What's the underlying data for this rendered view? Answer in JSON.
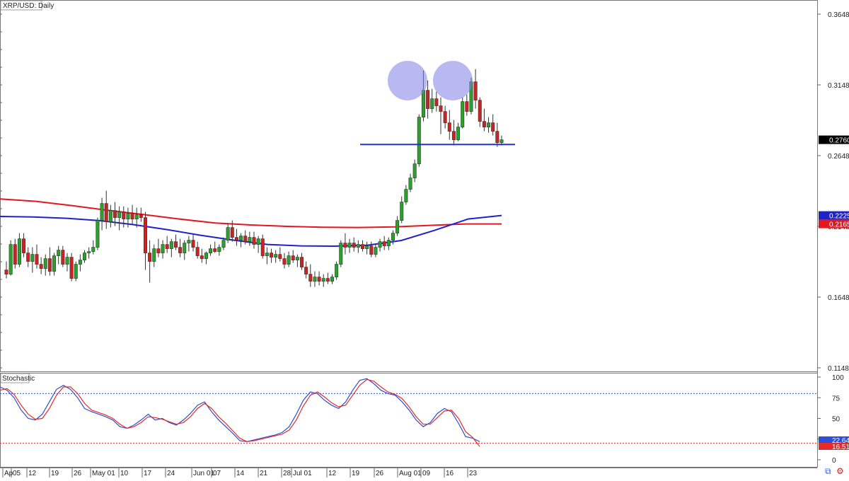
{
  "title": "XRP/USD: Daily",
  "colors": {
    "up": "#2ca02c",
    "down": "#cc2222",
    "ma_red": "#e4161f",
    "ma_blue": "#1f22c8",
    "support": "#2332d6",
    "circle": "#7f7fe8",
    "stoch_blue": "#2a4fd8",
    "stoch_red": "#e42a2a"
  },
  "chart_data": [
    {
      "type": "candlestick",
      "title": "XRP/USD: Daily",
      "y_ticks": [
        "0.3648",
        "0.3148",
        "0.2648",
        "0.2148",
        "0.1648",
        "0.1148"
      ],
      "ylim": [
        0.1148,
        0.3648
      ],
      "x_ticks": [
        "Ap",
        "05",
        "12",
        "19",
        "26",
        "May 01",
        "10",
        "17",
        "24",
        "Jun 01",
        "07",
        "14",
        "21",
        "28",
        "Jul 01",
        "12",
        "19",
        "26",
        "Aug 01",
        "09",
        "16",
        "23"
      ],
      "price_labels": [
        {
          "value": "0.2760",
          "bg": "#000000"
        },
        {
          "value": "0.2225",
          "bg": "#1f22c8"
        },
        {
          "value": "0.2165",
          "bg": "#e4161f"
        }
      ],
      "support_level": 0.2727,
      "highlights": [
        "double-top-left",
        "double-top-right"
      ],
      "ma_blue": [
        0.2218,
        0.2214,
        0.2205,
        0.2188,
        0.216,
        0.2125,
        0.2085,
        0.205,
        0.202,
        0.201,
        0.2008,
        0.2015,
        0.2048,
        0.212,
        0.22,
        0.2225
      ],
      "ma_red": [
        0.2342,
        0.2325,
        0.2295,
        0.2262,
        0.2232,
        0.22,
        0.2172,
        0.2158,
        0.2148,
        0.2142,
        0.214,
        0.2144,
        0.2155,
        0.2165,
        0.2165
      ],
      "candles": [
        {
          "o": 0.184,
          "h": 0.19,
          "l": 0.178,
          "c": 0.181
        },
        {
          "o": 0.181,
          "h": 0.205,
          "l": 0.18,
          "c": 0.202
        },
        {
          "o": 0.202,
          "h": 0.206,
          "l": 0.185,
          "c": 0.188
        },
        {
          "o": 0.188,
          "h": 0.21,
          "l": 0.186,
          "c": 0.206
        },
        {
          "o": 0.206,
          "h": 0.21,
          "l": 0.193,
          "c": 0.196
        },
        {
          "o": 0.196,
          "h": 0.2,
          "l": 0.186,
          "c": 0.19
        },
        {
          "o": 0.19,
          "h": 0.2,
          "l": 0.182,
          "c": 0.195
        },
        {
          "o": 0.195,
          "h": 0.202,
          "l": 0.185,
          "c": 0.188
        },
        {
          "o": 0.188,
          "h": 0.193,
          "l": 0.181,
          "c": 0.185
        },
        {
          "o": 0.185,
          "h": 0.195,
          "l": 0.18,
          "c": 0.192
        },
        {
          "o": 0.192,
          "h": 0.2,
          "l": 0.18,
          "c": 0.183
        },
        {
          "o": 0.183,
          "h": 0.196,
          "l": 0.18,
          "c": 0.194
        },
        {
          "o": 0.194,
          "h": 0.201,
          "l": 0.188,
          "c": 0.198
        },
        {
          "o": 0.198,
          "h": 0.201,
          "l": 0.186,
          "c": 0.188
        },
        {
          "o": 0.188,
          "h": 0.196,
          "l": 0.183,
          "c": 0.193
        },
        {
          "o": 0.193,
          "h": 0.196,
          "l": 0.176,
          "c": 0.178
        },
        {
          "o": 0.178,
          "h": 0.19,
          "l": 0.176,
          "c": 0.188
        },
        {
          "o": 0.188,
          "h": 0.195,
          "l": 0.183,
          "c": 0.191
        },
        {
          "o": 0.191,
          "h": 0.198,
          "l": 0.189,
          "c": 0.196
        },
        {
          "o": 0.196,
          "h": 0.2,
          "l": 0.192,
          "c": 0.197
        },
        {
          "o": 0.197,
          "h": 0.205,
          "l": 0.195,
          "c": 0.2
        },
        {
          "o": 0.2,
          "h": 0.221,
          "l": 0.198,
          "c": 0.219
        },
        {
          "o": 0.219,
          "h": 0.235,
          "l": 0.212,
          "c": 0.231
        },
        {
          "o": 0.231,
          "h": 0.24,
          "l": 0.213,
          "c": 0.218
        },
        {
          "o": 0.218,
          "h": 0.23,
          "l": 0.214,
          "c": 0.226
        },
        {
          "o": 0.226,
          "h": 0.232,
          "l": 0.215,
          "c": 0.221
        },
        {
          "o": 0.221,
          "h": 0.229,
          "l": 0.212,
          "c": 0.225
        },
        {
          "o": 0.225,
          "h": 0.229,
          "l": 0.214,
          "c": 0.22
        },
        {
          "o": 0.22,
          "h": 0.228,
          "l": 0.214,
          "c": 0.224
        },
        {
          "o": 0.224,
          "h": 0.23,
          "l": 0.216,
          "c": 0.22
        },
        {
          "o": 0.22,
          "h": 0.228,
          "l": 0.214,
          "c": 0.223
        },
        {
          "o": 0.223,
          "h": 0.228,
          "l": 0.218,
          "c": 0.221
        },
        {
          "o": 0.221,
          "h": 0.225,
          "l": 0.184,
          "c": 0.196
        },
        {
          "o": 0.196,
          "h": 0.205,
          "l": 0.175,
          "c": 0.19
        },
        {
          "o": 0.19,
          "h": 0.202,
          "l": 0.186,
          "c": 0.199
        },
        {
          "o": 0.199,
          "h": 0.206,
          "l": 0.193,
          "c": 0.196
        },
        {
          "o": 0.196,
          "h": 0.205,
          "l": 0.192,
          "c": 0.202
        },
        {
          "o": 0.202,
          "h": 0.208,
          "l": 0.196,
          "c": 0.199
        },
        {
          "o": 0.199,
          "h": 0.206,
          "l": 0.193,
          "c": 0.204
        },
        {
          "o": 0.204,
          "h": 0.209,
          "l": 0.198,
          "c": 0.2
        },
        {
          "o": 0.2,
          "h": 0.206,
          "l": 0.193,
          "c": 0.196
        },
        {
          "o": 0.196,
          "h": 0.205,
          "l": 0.191,
          "c": 0.203
        },
        {
          "o": 0.203,
          "h": 0.208,
          "l": 0.197,
          "c": 0.205
        },
        {
          "o": 0.205,
          "h": 0.209,
          "l": 0.197,
          "c": 0.2
        },
        {
          "o": 0.2,
          "h": 0.204,
          "l": 0.192,
          "c": 0.194
        },
        {
          "o": 0.194,
          "h": 0.199,
          "l": 0.189,
          "c": 0.192
        },
        {
          "o": 0.192,
          "h": 0.197,
          "l": 0.188,
          "c": 0.196
        },
        {
          "o": 0.196,
          "h": 0.202,
          "l": 0.194,
          "c": 0.199
        },
        {
          "o": 0.199,
          "h": 0.204,
          "l": 0.196,
          "c": 0.197
        },
        {
          "o": 0.197,
          "h": 0.202,
          "l": 0.194,
          "c": 0.2
        },
        {
          "o": 0.2,
          "h": 0.207,
          "l": 0.198,
          "c": 0.205
        },
        {
          "o": 0.205,
          "h": 0.217,
          "l": 0.203,
          "c": 0.214
        },
        {
          "o": 0.214,
          "h": 0.219,
          "l": 0.204,
          "c": 0.207
        },
        {
          "o": 0.207,
          "h": 0.213,
          "l": 0.201,
          "c": 0.205
        },
        {
          "o": 0.205,
          "h": 0.21,
          "l": 0.2,
          "c": 0.208
        },
        {
          "o": 0.208,
          "h": 0.212,
          "l": 0.202,
          "c": 0.204
        },
        {
          "o": 0.204,
          "h": 0.211,
          "l": 0.201,
          "c": 0.207
        },
        {
          "o": 0.207,
          "h": 0.211,
          "l": 0.199,
          "c": 0.202
        },
        {
          "o": 0.202,
          "h": 0.208,
          "l": 0.196,
          "c": 0.206
        },
        {
          "o": 0.206,
          "h": 0.209,
          "l": 0.192,
          "c": 0.194
        },
        {
          "o": 0.194,
          "h": 0.2,
          "l": 0.188,
          "c": 0.196
        },
        {
          "o": 0.196,
          "h": 0.199,
          "l": 0.189,
          "c": 0.193
        },
        {
          "o": 0.193,
          "h": 0.198,
          "l": 0.189,
          "c": 0.195
        },
        {
          "o": 0.195,
          "h": 0.2,
          "l": 0.19,
          "c": 0.192
        },
        {
          "o": 0.192,
          "h": 0.196,
          "l": 0.185,
          "c": 0.188
        },
        {
          "o": 0.188,
          "h": 0.197,
          "l": 0.186,
          "c": 0.194
        },
        {
          "o": 0.194,
          "h": 0.198,
          "l": 0.189,
          "c": 0.191
        },
        {
          "o": 0.191,
          "h": 0.195,
          "l": 0.186,
          "c": 0.193
        },
        {
          "o": 0.193,
          "h": 0.196,
          "l": 0.184,
          "c": 0.186
        },
        {
          "o": 0.186,
          "h": 0.19,
          "l": 0.178,
          "c": 0.181
        },
        {
          "o": 0.181,
          "h": 0.188,
          "l": 0.172,
          "c": 0.176
        },
        {
          "o": 0.176,
          "h": 0.183,
          "l": 0.172,
          "c": 0.179
        },
        {
          "o": 0.179,
          "h": 0.183,
          "l": 0.173,
          "c": 0.176
        },
        {
          "o": 0.176,
          "h": 0.181,
          "l": 0.172,
          "c": 0.178
        },
        {
          "o": 0.178,
          "h": 0.182,
          "l": 0.174,
          "c": 0.176
        },
        {
          "o": 0.176,
          "h": 0.181,
          "l": 0.174,
          "c": 0.179
        },
        {
          "o": 0.179,
          "h": 0.19,
          "l": 0.177,
          "c": 0.188
        },
        {
          "o": 0.188,
          "h": 0.205,
          "l": 0.186,
          "c": 0.203
        },
        {
          "o": 0.203,
          "h": 0.21,
          "l": 0.195,
          "c": 0.2
        },
        {
          "o": 0.2,
          "h": 0.206,
          "l": 0.196,
          "c": 0.203
        },
        {
          "o": 0.203,
          "h": 0.207,
          "l": 0.197,
          "c": 0.2
        },
        {
          "o": 0.2,
          "h": 0.205,
          "l": 0.196,
          "c": 0.202
        },
        {
          "o": 0.202,
          "h": 0.205,
          "l": 0.197,
          "c": 0.199
        },
        {
          "o": 0.199,
          "h": 0.204,
          "l": 0.195,
          "c": 0.201
        },
        {
          "o": 0.201,
          "h": 0.204,
          "l": 0.193,
          "c": 0.195
        },
        {
          "o": 0.195,
          "h": 0.202,
          "l": 0.193,
          "c": 0.2
        },
        {
          "o": 0.2,
          "h": 0.206,
          "l": 0.197,
          "c": 0.204
        },
        {
          "o": 0.204,
          "h": 0.208,
          "l": 0.198,
          "c": 0.201
        },
        {
          "o": 0.201,
          "h": 0.207,
          "l": 0.198,
          "c": 0.205
        },
        {
          "o": 0.205,
          "h": 0.212,
          "l": 0.202,
          "c": 0.21
        },
        {
          "o": 0.21,
          "h": 0.222,
          "l": 0.208,
          "c": 0.219
        },
        {
          "o": 0.219,
          "h": 0.236,
          "l": 0.217,
          "c": 0.232
        },
        {
          "o": 0.232,
          "h": 0.244,
          "l": 0.23,
          "c": 0.241
        },
        {
          "o": 0.241,
          "h": 0.252,
          "l": 0.239,
          "c": 0.249
        },
        {
          "o": 0.249,
          "h": 0.262,
          "l": 0.246,
          "c": 0.259
        },
        {
          "o": 0.259,
          "h": 0.294,
          "l": 0.257,
          "c": 0.292
        },
        {
          "o": 0.292,
          "h": 0.325,
          "l": 0.289,
          "c": 0.311
        },
        {
          "o": 0.311,
          "h": 0.318,
          "l": 0.291,
          "c": 0.298
        },
        {
          "o": 0.298,
          "h": 0.312,
          "l": 0.295,
          "c": 0.305
        },
        {
          "o": 0.305,
          "h": 0.31,
          "l": 0.296,
          "c": 0.3
        },
        {
          "o": 0.3,
          "h": 0.306,
          "l": 0.28,
          "c": 0.296
        },
        {
          "o": 0.296,
          "h": 0.3,
          "l": 0.284,
          "c": 0.288
        },
        {
          "o": 0.288,
          "h": 0.297,
          "l": 0.276,
          "c": 0.282
        },
        {
          "o": 0.282,
          "h": 0.29,
          "l": 0.272,
          "c": 0.276
        },
        {
          "o": 0.276,
          "h": 0.288,
          "l": 0.275,
          "c": 0.285
        },
        {
          "o": 0.285,
          "h": 0.306,
          "l": 0.284,
          "c": 0.303
        },
        {
          "o": 0.303,
          "h": 0.308,
          "l": 0.293,
          "c": 0.296
        },
        {
          "o": 0.296,
          "h": 0.32,
          "l": 0.294,
          "c": 0.317
        },
        {
          "o": 0.317,
          "h": 0.326,
          "l": 0.298,
          "c": 0.304
        },
        {
          "o": 0.304,
          "h": 0.306,
          "l": 0.285,
          "c": 0.289
        },
        {
          "o": 0.289,
          "h": 0.298,
          "l": 0.282,
          "c": 0.285
        },
        {
          "o": 0.285,
          "h": 0.292,
          "l": 0.281,
          "c": 0.288
        },
        {
          "o": 0.288,
          "h": 0.294,
          "l": 0.279,
          "c": 0.282
        },
        {
          "o": 0.282,
          "h": 0.288,
          "l": 0.271,
          "c": 0.274
        },
        {
          "o": 0.274,
          "h": 0.279,
          "l": 0.272,
          "c": 0.276
        }
      ]
    },
    {
      "type": "line",
      "title": "Stochastic",
      "ylim": [
        0,
        100
      ],
      "y_ticks": [
        "100",
        "75",
        "50",
        "25",
        "0"
      ],
      "levels": [
        80,
        20
      ],
      "value_labels": [
        {
          "value": "22.64",
          "bg": "#2a4fd8"
        },
        {
          "value": "16.51",
          "bg": "#e42a2a"
        }
      ],
      "series": [
        {
          "values": [
            88,
            84,
            75,
            60,
            50,
            48,
            55,
            70,
            85,
            90,
            85,
            75,
            62,
            58,
            55,
            52,
            48,
            40,
            38,
            42,
            48,
            55,
            48,
            50,
            45,
            42,
            48,
            56,
            66,
            70,
            58,
            48,
            40,
            32,
            23,
            22,
            24,
            26,
            28,
            30,
            33,
            40,
            55,
            72,
            82,
            80,
            72,
            66,
            62,
            70,
            84,
            96,
            98,
            92,
            84,
            80,
            78,
            70,
            60,
            48,
            40,
            45,
            56,
            62,
            58,
            44,
            28,
            26,
            22
          ]
        },
        {
          "values": [
            84,
            86,
            79,
            66,
            55,
            49,
            50,
            62,
            78,
            88,
            88,
            80,
            68,
            60,
            57,
            54,
            50,
            43,
            38,
            40,
            45,
            52,
            51,
            49,
            46,
            43,
            45,
            52,
            62,
            68,
            62,
            52,
            44,
            35,
            26,
            22,
            23,
            25,
            27,
            29,
            31,
            36,
            48,
            65,
            78,
            82,
            76,
            69,
            64,
            66,
            78,
            90,
            97,
            95,
            88,
            82,
            79,
            74,
            64,
            52,
            43,
            43,
            51,
            59,
            60,
            50,
            34,
            27,
            16
          ]
        }
      ]
    }
  ]
}
